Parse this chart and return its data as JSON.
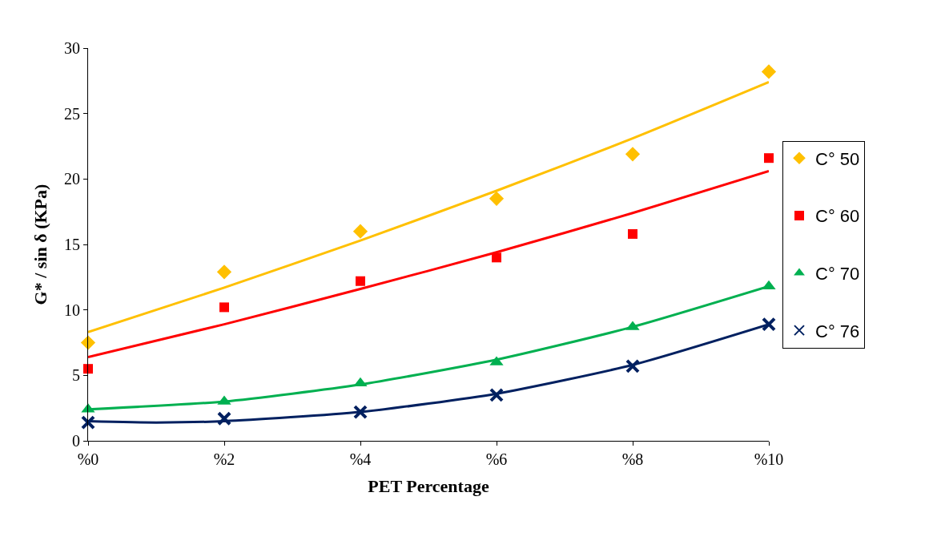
{
  "chart_data": {
    "type": "scatter",
    "xlabel": "PET Percentage",
    "ylabel": "G* / sin δ (KPa)",
    "x": [
      0,
      2,
      4,
      6,
      8,
      10
    ],
    "xlim": [
      0,
      10
    ],
    "xticks": [
      {
        "value": 0,
        "label": "%0"
      },
      {
        "value": 2,
        "label": "%2"
      },
      {
        "value": 4,
        "label": "%4"
      },
      {
        "value": 6,
        "label": "%6"
      },
      {
        "value": 8,
        "label": "%8"
      },
      {
        "value": 10,
        "label": "%10"
      }
    ],
    "ylim": [
      0,
      30
    ],
    "yticks": [
      0,
      5,
      10,
      15,
      20,
      25,
      30
    ],
    "legend": "right",
    "series": [
      {
        "name": "C° 50",
        "color": "#ffc000",
        "marker": "diamond",
        "values": [
          7.5,
          12.9,
          16.0,
          18.5,
          21.9,
          28.2
        ]
      },
      {
        "name": "C° 60",
        "color": "#ff0000",
        "marker": "square",
        "values": [
          5.5,
          10.2,
          12.2,
          14.0,
          15.8,
          21.6
        ]
      },
      {
        "name": "C° 70",
        "color": "#00b050",
        "marker": "triangle",
        "values": [
          2.4,
          3.0,
          4.4,
          6.0,
          8.7,
          11.8
        ]
      },
      {
        "name": "C° 76",
        "color": "#002060",
        "marker": "cross",
        "values": [
          1.4,
          1.7,
          2.2,
          3.5,
          5.7,
          8.9
        ]
      },
      {
        "type": "line",
        "color": "#ffc000",
        "x": [
          0,
          2,
          4,
          6,
          8,
          10
        ],
        "values": [
          8.3,
          11.7,
          15.3,
          19.1,
          23.1,
          27.4
        ]
      },
      {
        "type": "line",
        "color": "#ff0000",
        "x": [
          0,
          2,
          4,
          6,
          8,
          10
        ],
        "values": [
          6.4,
          8.9,
          11.6,
          14.4,
          17.4,
          20.6
        ]
      },
      {
        "type": "line",
        "color": "#00b050",
        "x": [
          0,
          2,
          4,
          6,
          8,
          10
        ],
        "values": [
          2.4,
          3.0,
          4.3,
          6.2,
          8.7,
          11.8
        ]
      },
      {
        "type": "line",
        "color": "#002060",
        "x": [
          0,
          1,
          2,
          4,
          6,
          8,
          10
        ],
        "values": [
          1.5,
          1.4,
          1.5,
          2.2,
          3.6,
          5.8,
          8.9
        ]
      }
    ]
  }
}
